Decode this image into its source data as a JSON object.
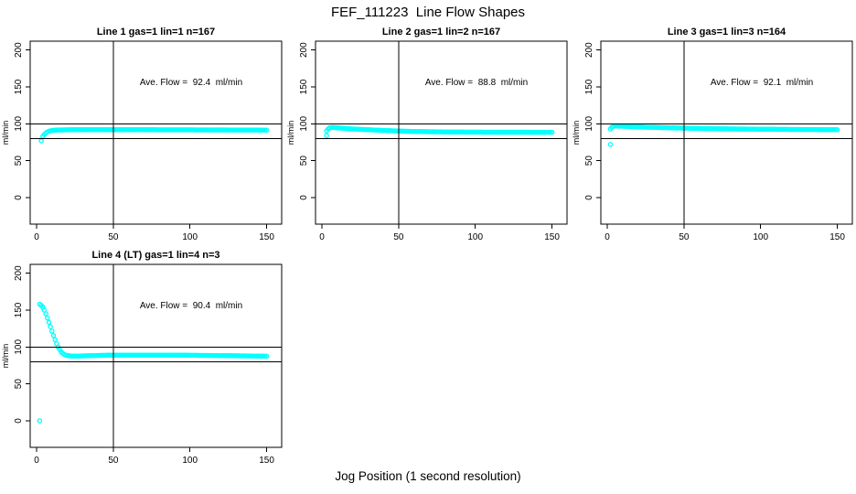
{
  "figure": {
    "title": "FEF_111223  Line Flow Shapes",
    "xlabel": "Jog Position (1 second resolution)",
    "background_color": "#FFFFFF",
    "axis_color": "#000000",
    "point_color": "#00FFFF"
  },
  "chart_data": [
    {
      "type": "scatter",
      "title": "Line 1 gas=1 lin=1 n=167",
      "n": 167,
      "annotation": "Ave. Flow =  92.4  ml/min",
      "ave_flow_ml_min": 92.4,
      "ylabel": "ml/min",
      "xticks": [
        0,
        50,
        100,
        150
      ],
      "yticks": [
        0,
        50,
        100,
        150,
        200
      ],
      "xlim": [
        -4.2,
        159.8
      ],
      "ylim": [
        -36,
        212
      ],
      "hlines": [
        80,
        100
      ],
      "vlines": [
        50
      ],
      "grid": false,
      "marker": "open-circle",
      "outlier_points": [
        [
          3,
          77
        ]
      ],
      "curve_keypoints": [
        [
          4,
          83
        ],
        [
          5,
          85.5
        ],
        [
          6,
          87.5
        ],
        [
          7,
          89
        ],
        [
          8,
          90
        ],
        [
          10,
          91
        ],
        [
          14,
          91.7
        ],
        [
          25,
          92
        ],
        [
          60,
          92
        ],
        [
          100,
          91.8
        ],
        [
          150,
          91.5
        ]
      ],
      "cell": [
        0,
        0
      ]
    },
    {
      "type": "scatter",
      "title": "Line 2 gas=1 lin=2 n=167",
      "n": 167,
      "annotation": "Ave. Flow =  88.8  ml/min",
      "ave_flow_ml_min": 88.8,
      "ylabel": "ml/min",
      "xticks": [
        0,
        50,
        100,
        150
      ],
      "yticks": [
        0,
        50,
        100,
        150,
        200
      ],
      "xlim": [
        -4.2,
        159.8
      ],
      "ylim": [
        -36,
        212
      ],
      "hlines": [
        80,
        100
      ],
      "vlines": [
        50
      ],
      "grid": false,
      "marker": "open-circle",
      "outlier_points": [
        [
          3,
          84
        ]
      ],
      "curve_keypoints": [
        [
          3,
          90.5
        ],
        [
          4,
          93
        ],
        [
          5,
          94.5
        ],
        [
          7,
          95
        ],
        [
          10,
          94.5
        ],
        [
          15,
          93.7
        ],
        [
          20,
          93
        ],
        [
          30,
          92
        ],
        [
          40,
          91
        ],
        [
          50,
          90.2
        ],
        [
          60,
          89.6
        ],
        [
          80,
          89
        ],
        [
          100,
          88.7
        ],
        [
          125,
          88.6
        ],
        [
          150,
          88.5
        ]
      ],
      "cell": [
        1,
        0
      ]
    },
    {
      "type": "scatter",
      "title": "Line 3 gas=1 lin=3 n=164",
      "n": 164,
      "annotation": "Ave. Flow =  92.1  ml/min",
      "ave_flow_ml_min": 92.1,
      "ylabel": "ml/min",
      "xticks": [
        0,
        50,
        100,
        150
      ],
      "yticks": [
        0,
        50,
        100,
        150,
        200
      ],
      "xlim": [
        -4.2,
        159.8
      ],
      "ylim": [
        -36,
        212
      ],
      "hlines": [
        80,
        100
      ],
      "vlines": [
        50
      ],
      "grid": false,
      "marker": "open-circle",
      "outlier_points": [
        [
          2,
          72
        ]
      ],
      "curve_keypoints": [
        [
          2,
          93
        ],
        [
          3,
          95.5
        ],
        [
          4,
          96.5
        ],
        [
          6,
          97
        ],
        [
          10,
          96.7
        ],
        [
          15,
          96.2
        ],
        [
          25,
          95.4
        ],
        [
          40,
          94.6
        ],
        [
          60,
          93.7
        ],
        [
          80,
          93.1
        ],
        [
          100,
          92.7
        ],
        [
          125,
          92.3
        ],
        [
          150,
          92
        ]
      ],
      "cell": [
        2,
        0
      ]
    },
    {
      "type": "scatter",
      "title": "Line 4 (LT) gas=1 lin=4 n=3",
      "n": 3,
      "annotation": "Ave. Flow =  90.4  ml/min",
      "ave_flow_ml_min": 90.4,
      "ylabel": "ml/min",
      "xticks": [
        0,
        50,
        100,
        150
      ],
      "yticks": [
        0,
        50,
        100,
        150,
        200
      ],
      "xlim": [
        -4.2,
        159.8
      ],
      "ylim": [
        -36,
        212
      ],
      "hlines": [
        80,
        100
      ],
      "vlines": [
        50
      ],
      "grid": false,
      "marker": "open-circle",
      "outlier_points": [
        [
          2,
          0
        ]
      ],
      "curve_keypoints": [
        [
          2,
          158
        ],
        [
          3,
          156.5
        ],
        [
          4,
          154
        ],
        [
          5,
          150
        ],
        [
          6,
          145
        ],
        [
          7,
          139.5
        ],
        [
          8,
          133.5
        ],
        [
          9,
          127.5
        ],
        [
          10,
          121.5
        ],
        [
          11,
          115.5
        ],
        [
          12,
          110
        ],
        [
          13,
          104.5
        ],
        [
          14,
          100
        ],
        [
          15,
          96.5
        ],
        [
          16,
          93.5
        ],
        [
          17,
          91.5
        ],
        [
          18,
          90
        ],
        [
          19,
          89
        ],
        [
          20,
          88.3
        ],
        [
          23,
          87.8
        ],
        [
          27,
          87.7
        ],
        [
          35,
          88.3
        ],
        [
          45,
          88.8
        ],
        [
          60,
          89
        ],
        [
          80,
          89
        ],
        [
          100,
          88.8
        ],
        [
          125,
          88.3
        ],
        [
          150,
          87.5
        ]
      ],
      "cell": [
        0,
        1
      ]
    }
  ]
}
